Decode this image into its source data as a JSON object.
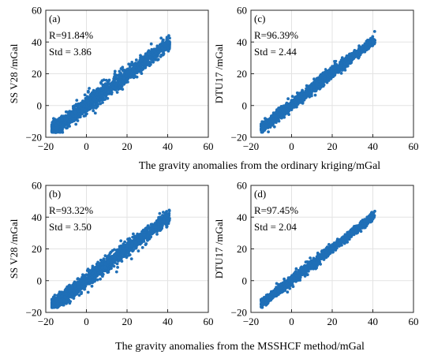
{
  "colors": {
    "points": "#1f6fb7",
    "grid": "#e3e3e3",
    "axes": "#262626"
  },
  "figure": {
    "xlabel_top": "The gravity anomalies from the ordinary kriging/mGal",
    "xlabel_bottom": "The gravity anomalies from the MSSHCF method/mGal"
  },
  "chart_data": [
    {
      "id": "a",
      "type": "scatter",
      "panel_label": "(a)",
      "r_text": "R=91.84%",
      "std_text": "Std = 3.86",
      "ylabel": "SS V28 /mGal",
      "xlim": [
        -20,
        60
      ],
      "ylim": [
        -20,
        60
      ],
      "xticks": [
        "−20",
        "0",
        "20",
        "40",
        "60"
      ],
      "yticks": [
        "60",
        "40",
        "20",
        "0",
        "−20"
      ],
      "grid": true,
      "cloud": {
        "x_range": [
          -17,
          41
        ],
        "slope": 0.95,
        "intercept": 0.5,
        "spread": 4.2
      }
    },
    {
      "id": "c",
      "type": "scatter",
      "panel_label": "(c)",
      "r_text": "R=96.39%",
      "std_text": "Std = 2.44",
      "ylabel": "DTU17 /mGal",
      "xlim": [
        -20,
        60
      ],
      "ylim": [
        -20,
        60
      ],
      "xticks": [
        "−20",
        "0",
        "20",
        "40",
        "60"
      ],
      "yticks": [
        "60",
        "40",
        "20",
        "0",
        "−20"
      ],
      "grid": true,
      "cloud": {
        "x_range": [
          -15,
          41
        ],
        "slope": 1.0,
        "intercept": 0.5,
        "spread": 2.6
      }
    },
    {
      "id": "b",
      "type": "scatter",
      "panel_label": "(b)",
      "r_text": "R=93.32%",
      "std_text": "Std = 3.50",
      "ylabel": "SS V28 /mGal",
      "xlim": [
        -20,
        60
      ],
      "ylim": [
        -20,
        60
      ],
      "xticks": [
        "−20",
        "0",
        "20",
        "40",
        "60"
      ],
      "yticks": [
        "60",
        "40",
        "20",
        "0",
        "−20"
      ],
      "grid": true,
      "cloud": {
        "x_range": [
          -17,
          41
        ],
        "slope": 0.97,
        "intercept": 0.5,
        "spread": 3.8
      }
    },
    {
      "id": "d",
      "type": "scatter",
      "panel_label": "(d)",
      "r_text": "R=97.45%",
      "std_text": "Std = 2.04",
      "ylabel": "DTU17 /mGal",
      "xlim": [
        -20,
        60
      ],
      "ylim": [
        -20,
        60
      ],
      "xticks": [
        "−20",
        "0",
        "20",
        "40",
        "60"
      ],
      "yticks": [
        "60",
        "40",
        "20",
        "0",
        "−20"
      ],
      "grid": true,
      "cloud": {
        "x_range": [
          -15,
          41
        ],
        "slope": 1.0,
        "intercept": 0.3,
        "spread": 2.2
      }
    }
  ]
}
